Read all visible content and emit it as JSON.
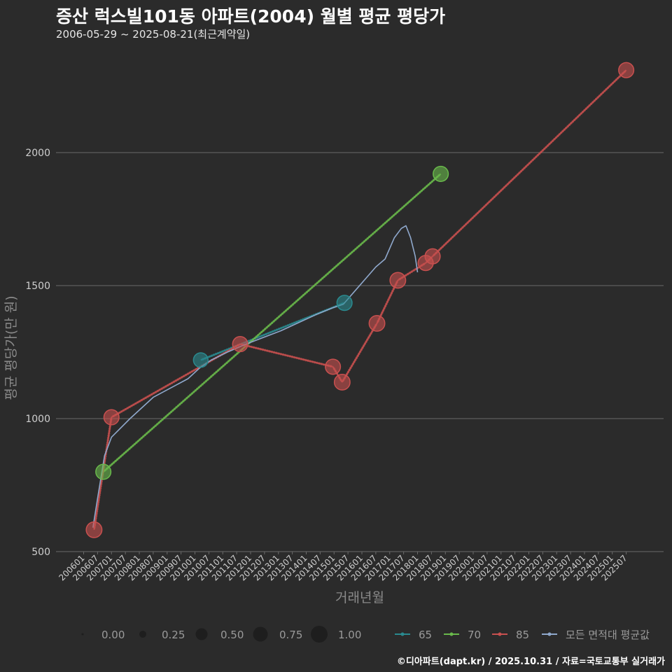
{
  "title": "증산 럭스빌101동 아파트(2004) 월별 평균 평당가",
  "subtitle": "2006-05-29 ~ 2025-08-21(최근계약일)",
  "caption": "©디아파트(dapt.kr) / 2025.10.31 / 자료=국토교통부 실거래가",
  "colors": {
    "background": "#2b2b2b",
    "grid": "#6a6a6a",
    "s65": "#2a8a8f",
    "s70": "#69b94b",
    "s85": "#c8504f",
    "avg": "#8fa8cc"
  },
  "chart_data": {
    "type": "line",
    "title": "증산 럭스빌101동 아파트(2004) 월별 평균 평당가",
    "xlabel": "거래년월",
    "ylabel": "평균 평당가(만 원)",
    "ylim": [
      500,
      2320
    ],
    "yticks": [
      500,
      1000,
      1500,
      2000
    ],
    "xticks": [
      "200601",
      "200607",
      "200701",
      "200707",
      "200801",
      "200807",
      "200901",
      "200907",
      "201001",
      "201007",
      "201101",
      "201107",
      "201201",
      "201207",
      "201301",
      "201307",
      "201401",
      "201407",
      "201501",
      "201507",
      "201601",
      "201607",
      "201701",
      "201707",
      "201801",
      "201807",
      "201901",
      "201907",
      "202001",
      "202007",
      "202101",
      "202107",
      "202201",
      "202207",
      "202301",
      "202307",
      "202401",
      "202407",
      "202501",
      "202507"
    ],
    "x_unit": "months since 2006-01",
    "series": [
      {
        "name": "65",
        "color_key": "s65",
        "points": [
          {
            "x": 50.5,
            "y": 1220,
            "size": 0.55
          },
          {
            "x": 112.5,
            "y": 1435,
            "size": 0.6
          }
        ]
      },
      {
        "name": "70",
        "color_key": "s70",
        "points": [
          {
            "x": 8.5,
            "y": 800,
            "size": 0.6
          },
          {
            "x": 154,
            "y": 1920,
            "size": 0.6
          }
        ]
      },
      {
        "name": "85",
        "color_key": "s85",
        "points": [
          {
            "x": 4.5,
            "y": 582,
            "size": 0.65
          },
          {
            "x": 12,
            "y": 1005,
            "size": 0.6
          },
          {
            "x": 67.5,
            "y": 1280,
            "size": 0.6
          },
          {
            "x": 107.5,
            "y": 1195,
            "size": 0.6
          },
          {
            "x": 111.5,
            "y": 1137,
            "size": 0.65
          },
          {
            "x": 126.5,
            "y": 1358,
            "size": 0.65
          },
          {
            "x": 135.5,
            "y": 1520,
            "size": 0.65
          },
          {
            "x": 147.5,
            "y": 1585,
            "size": 0.6
          },
          {
            "x": 150.5,
            "y": 1610,
            "size": 0.6
          },
          {
            "x": 234,
            "y": 2310,
            "size": 0.6
          }
        ]
      }
    ],
    "average_line": {
      "name": "모든 면적대 평균값",
      "color_key": "avg",
      "points": [
        [
          4,
          590
        ],
        [
          6,
          700
        ],
        [
          9,
          860
        ],
        [
          12,
          930
        ],
        [
          20,
          1000
        ],
        [
          30,
          1080
        ],
        [
          45,
          1150
        ],
        [
          50,
          1190
        ],
        [
          55,
          1220
        ],
        [
          62,
          1250
        ],
        [
          70,
          1280
        ],
        [
          85,
          1330
        ],
        [
          100,
          1390
        ],
        [
          107,
          1415
        ],
        [
          112,
          1430
        ],
        [
          118,
          1490
        ],
        [
          126,
          1570
        ],
        [
          130,
          1600
        ],
        [
          134,
          1680
        ],
        [
          137,
          1715
        ],
        [
          139,
          1725
        ],
        [
          141,
          1680
        ],
        [
          143,
          1610
        ],
        [
          144,
          1550
        ]
      ]
    },
    "legend_size": {
      "values": [
        "0.00",
        "0.25",
        "0.50",
        "0.75",
        "1.00"
      ]
    },
    "legend_color": {
      "labels": [
        "65",
        "70",
        "85",
        "모든 면적대 평균값"
      ]
    }
  }
}
